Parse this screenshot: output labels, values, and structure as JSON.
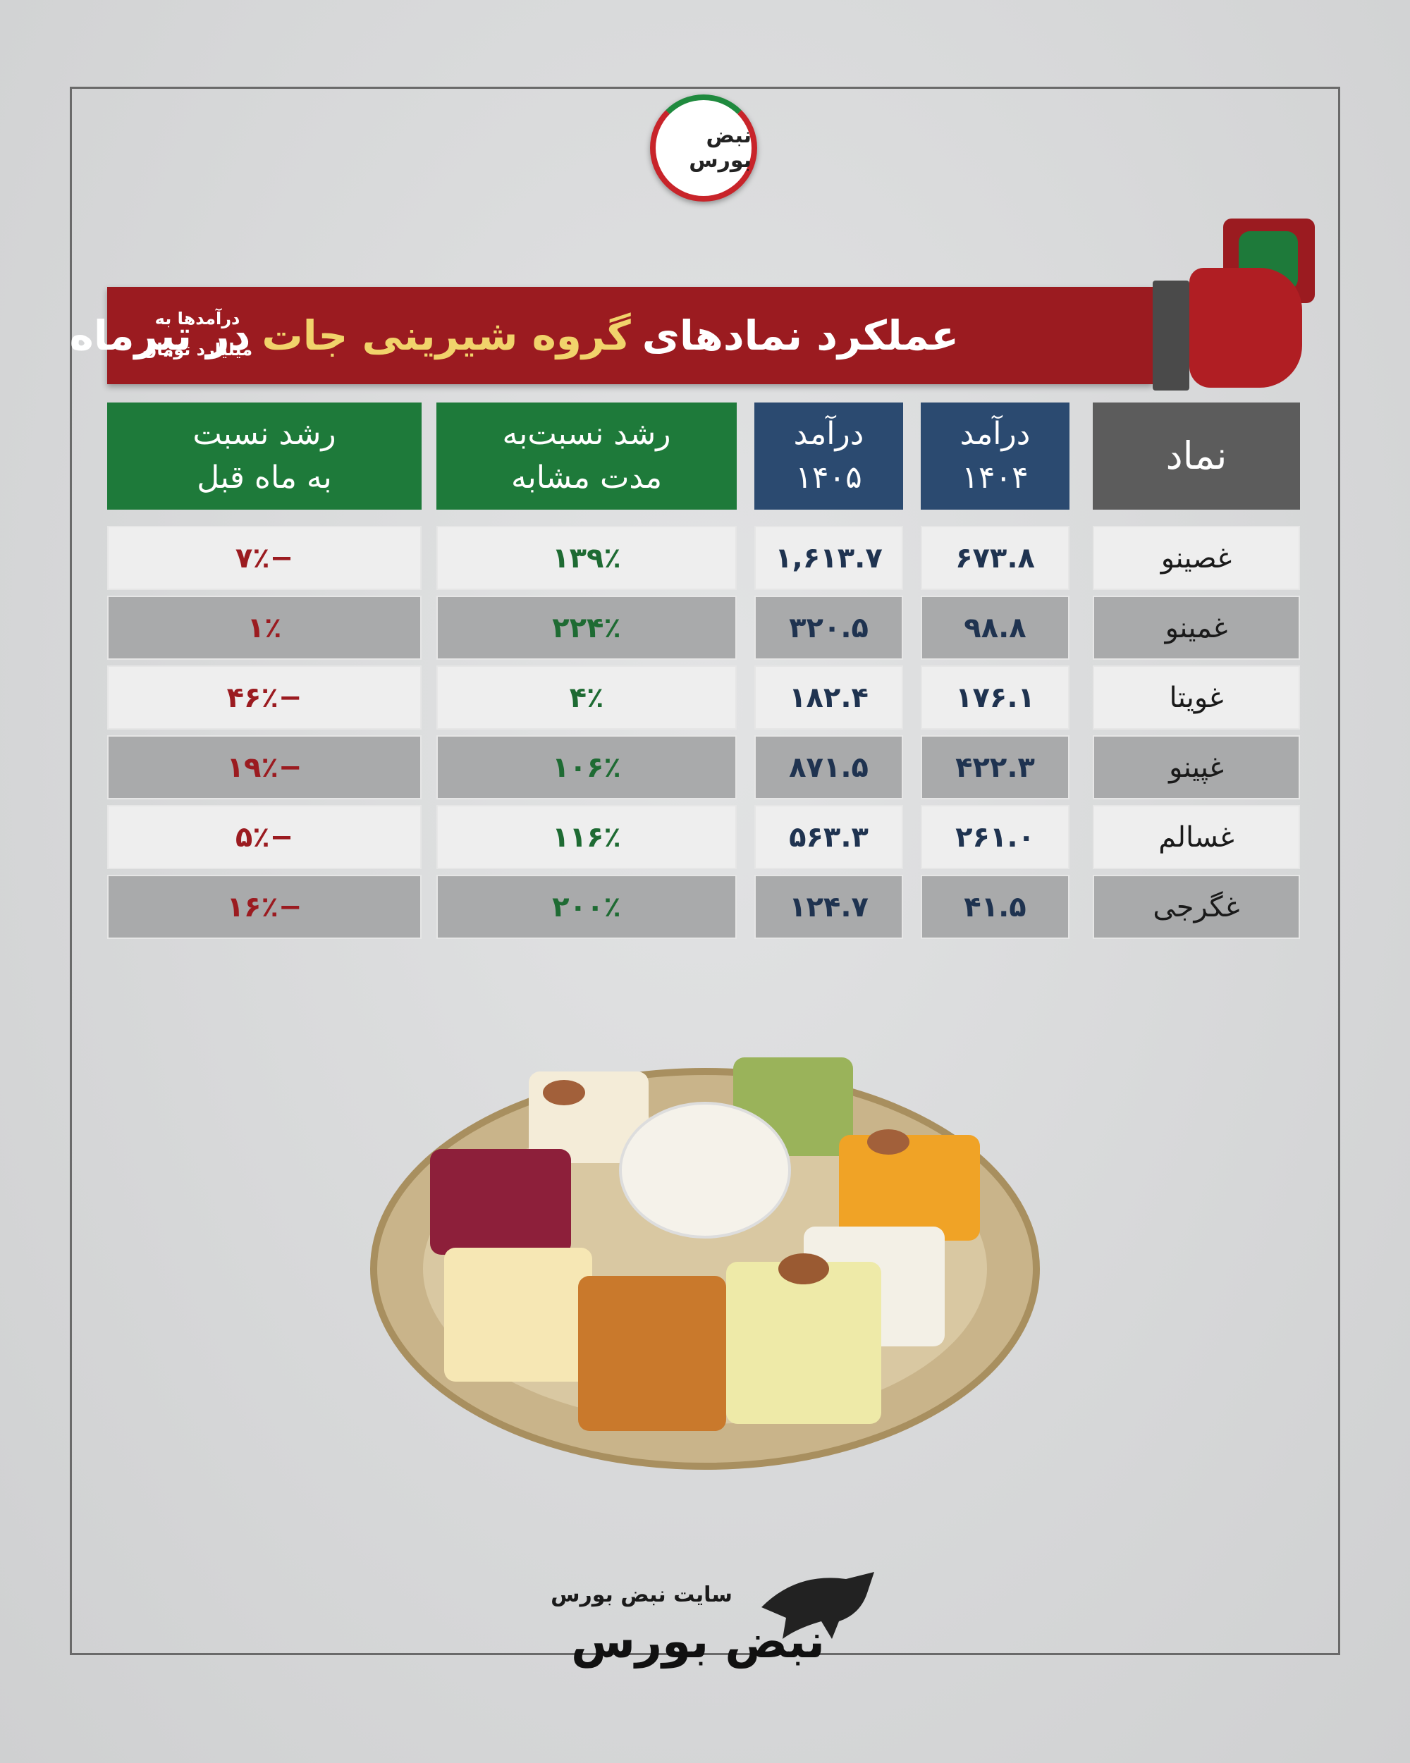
{
  "logo": {
    "text": "نبض بورس"
  },
  "header": {
    "title_parts": [
      "عملکرد نمادهای",
      "گروه شیرینی جات",
      "در تیرماه"
    ],
    "unit_note": [
      "درآمدها به",
      "میلیارد تومان"
    ]
  },
  "table": {
    "columns": [
      [
        "نماد"
      ],
      [
        "درآمد",
        "۱۴۰۴"
      ],
      [
        "درآمد",
        "۱۴۰۵"
      ],
      [
        "رشد نسبت‌به",
        "مدت مشابه"
      ],
      [
        "رشد نسبت",
        "به ماه قبل"
      ]
    ],
    "rows": [
      [
        "غصینو",
        "۶۷۳.۸",
        "۱,۶۱۳.۷",
        "۱۳۹٪",
        "−۷٪"
      ],
      [
        "غمینو",
        "۹۸.۸",
        "۳۲۰.۵",
        "۲۲۴٪",
        "۱٪"
      ],
      [
        "غویتا",
        "۱۷۶.۱",
        "۱۸۲.۴",
        "۴٪",
        "−۴۶٪"
      ],
      [
        "غپینو",
        "۴۲۲.۳",
        "۸۷۱.۵",
        "۱۰۶٪",
        "−۱۹٪"
      ],
      [
        "غسالم",
        "۲۶۱.۰",
        "۵۶۳.۳",
        "۱۱۶٪",
        "−۵٪"
      ],
      [
        "غگرجی",
        "۴۱.۵",
        "۱۲۴.۷",
        "۲۰۰٪",
        "−۱۶٪"
      ]
    ]
  },
  "footer": {
    "site": "سایت نبض بورس",
    "brand": "نبض بورس"
  }
}
